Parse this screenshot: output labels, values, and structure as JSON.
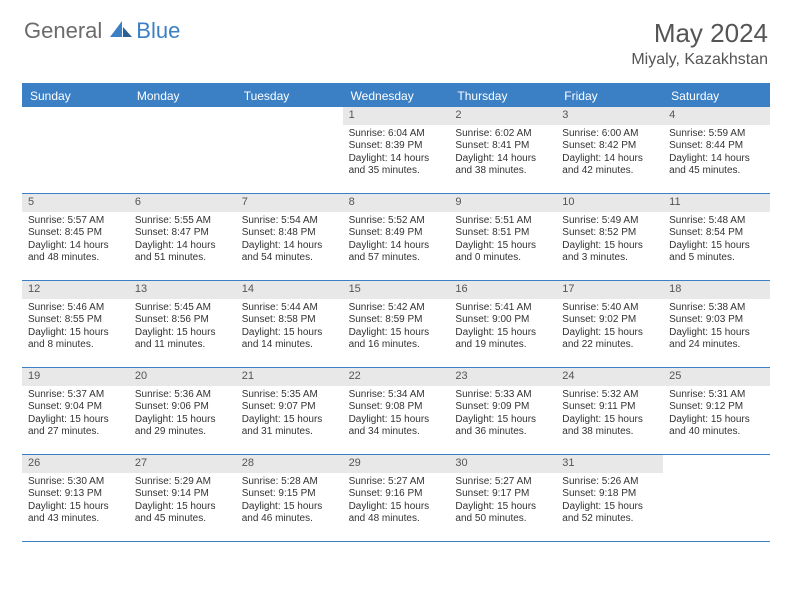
{
  "logo": {
    "text_general": "General",
    "text_blue": "Blue"
  },
  "header": {
    "month_title": "May 2024",
    "location": "Miyaly, Kazakhstan"
  },
  "colors": {
    "accent": "#3b7fc4",
    "header_bg": "#3b7fc4",
    "daynum_bg": "#e8e8e8",
    "text": "#333333",
    "title_text": "#555555"
  },
  "day_names": [
    "Sunday",
    "Monday",
    "Tuesday",
    "Wednesday",
    "Thursday",
    "Friday",
    "Saturday"
  ],
  "weeks": [
    [
      {
        "day": "",
        "lines": []
      },
      {
        "day": "",
        "lines": []
      },
      {
        "day": "",
        "lines": []
      },
      {
        "day": "1",
        "lines": [
          "Sunrise: 6:04 AM",
          "Sunset: 8:39 PM",
          "Daylight: 14 hours",
          "and 35 minutes."
        ]
      },
      {
        "day": "2",
        "lines": [
          "Sunrise: 6:02 AM",
          "Sunset: 8:41 PM",
          "Daylight: 14 hours",
          "and 38 minutes."
        ]
      },
      {
        "day": "3",
        "lines": [
          "Sunrise: 6:00 AM",
          "Sunset: 8:42 PM",
          "Daylight: 14 hours",
          "and 42 minutes."
        ]
      },
      {
        "day": "4",
        "lines": [
          "Sunrise: 5:59 AM",
          "Sunset: 8:44 PM",
          "Daylight: 14 hours",
          "and 45 minutes."
        ]
      }
    ],
    [
      {
        "day": "5",
        "lines": [
          "Sunrise: 5:57 AM",
          "Sunset: 8:45 PM",
          "Daylight: 14 hours",
          "and 48 minutes."
        ]
      },
      {
        "day": "6",
        "lines": [
          "Sunrise: 5:55 AM",
          "Sunset: 8:47 PM",
          "Daylight: 14 hours",
          "and 51 minutes."
        ]
      },
      {
        "day": "7",
        "lines": [
          "Sunrise: 5:54 AM",
          "Sunset: 8:48 PM",
          "Daylight: 14 hours",
          "and 54 minutes."
        ]
      },
      {
        "day": "8",
        "lines": [
          "Sunrise: 5:52 AM",
          "Sunset: 8:49 PM",
          "Daylight: 14 hours",
          "and 57 minutes."
        ]
      },
      {
        "day": "9",
        "lines": [
          "Sunrise: 5:51 AM",
          "Sunset: 8:51 PM",
          "Daylight: 15 hours",
          "and 0 minutes."
        ]
      },
      {
        "day": "10",
        "lines": [
          "Sunrise: 5:49 AM",
          "Sunset: 8:52 PM",
          "Daylight: 15 hours",
          "and 3 minutes."
        ]
      },
      {
        "day": "11",
        "lines": [
          "Sunrise: 5:48 AM",
          "Sunset: 8:54 PM",
          "Daylight: 15 hours",
          "and 5 minutes."
        ]
      }
    ],
    [
      {
        "day": "12",
        "lines": [
          "Sunrise: 5:46 AM",
          "Sunset: 8:55 PM",
          "Daylight: 15 hours",
          "and 8 minutes."
        ]
      },
      {
        "day": "13",
        "lines": [
          "Sunrise: 5:45 AM",
          "Sunset: 8:56 PM",
          "Daylight: 15 hours",
          "and 11 minutes."
        ]
      },
      {
        "day": "14",
        "lines": [
          "Sunrise: 5:44 AM",
          "Sunset: 8:58 PM",
          "Daylight: 15 hours",
          "and 14 minutes."
        ]
      },
      {
        "day": "15",
        "lines": [
          "Sunrise: 5:42 AM",
          "Sunset: 8:59 PM",
          "Daylight: 15 hours",
          "and 16 minutes."
        ]
      },
      {
        "day": "16",
        "lines": [
          "Sunrise: 5:41 AM",
          "Sunset: 9:00 PM",
          "Daylight: 15 hours",
          "and 19 minutes."
        ]
      },
      {
        "day": "17",
        "lines": [
          "Sunrise: 5:40 AM",
          "Sunset: 9:02 PM",
          "Daylight: 15 hours",
          "and 22 minutes."
        ]
      },
      {
        "day": "18",
        "lines": [
          "Sunrise: 5:38 AM",
          "Sunset: 9:03 PM",
          "Daylight: 15 hours",
          "and 24 minutes."
        ]
      }
    ],
    [
      {
        "day": "19",
        "lines": [
          "Sunrise: 5:37 AM",
          "Sunset: 9:04 PM",
          "Daylight: 15 hours",
          "and 27 minutes."
        ]
      },
      {
        "day": "20",
        "lines": [
          "Sunrise: 5:36 AM",
          "Sunset: 9:06 PM",
          "Daylight: 15 hours",
          "and 29 minutes."
        ]
      },
      {
        "day": "21",
        "lines": [
          "Sunrise: 5:35 AM",
          "Sunset: 9:07 PM",
          "Daylight: 15 hours",
          "and 31 minutes."
        ]
      },
      {
        "day": "22",
        "lines": [
          "Sunrise: 5:34 AM",
          "Sunset: 9:08 PM",
          "Daylight: 15 hours",
          "and 34 minutes."
        ]
      },
      {
        "day": "23",
        "lines": [
          "Sunrise: 5:33 AM",
          "Sunset: 9:09 PM",
          "Daylight: 15 hours",
          "and 36 minutes."
        ]
      },
      {
        "day": "24",
        "lines": [
          "Sunrise: 5:32 AM",
          "Sunset: 9:11 PM",
          "Daylight: 15 hours",
          "and 38 minutes."
        ]
      },
      {
        "day": "25",
        "lines": [
          "Sunrise: 5:31 AM",
          "Sunset: 9:12 PM",
          "Daylight: 15 hours",
          "and 40 minutes."
        ]
      }
    ],
    [
      {
        "day": "26",
        "lines": [
          "Sunrise: 5:30 AM",
          "Sunset: 9:13 PM",
          "Daylight: 15 hours",
          "and 43 minutes."
        ]
      },
      {
        "day": "27",
        "lines": [
          "Sunrise: 5:29 AM",
          "Sunset: 9:14 PM",
          "Daylight: 15 hours",
          "and 45 minutes."
        ]
      },
      {
        "day": "28",
        "lines": [
          "Sunrise: 5:28 AM",
          "Sunset: 9:15 PM",
          "Daylight: 15 hours",
          "and 46 minutes."
        ]
      },
      {
        "day": "29",
        "lines": [
          "Sunrise: 5:27 AM",
          "Sunset: 9:16 PM",
          "Daylight: 15 hours",
          "and 48 minutes."
        ]
      },
      {
        "day": "30",
        "lines": [
          "Sunrise: 5:27 AM",
          "Sunset: 9:17 PM",
          "Daylight: 15 hours",
          "and 50 minutes."
        ]
      },
      {
        "day": "31",
        "lines": [
          "Sunrise: 5:26 AM",
          "Sunset: 9:18 PM",
          "Daylight: 15 hours",
          "and 52 minutes."
        ]
      },
      {
        "day": "",
        "lines": []
      }
    ]
  ]
}
